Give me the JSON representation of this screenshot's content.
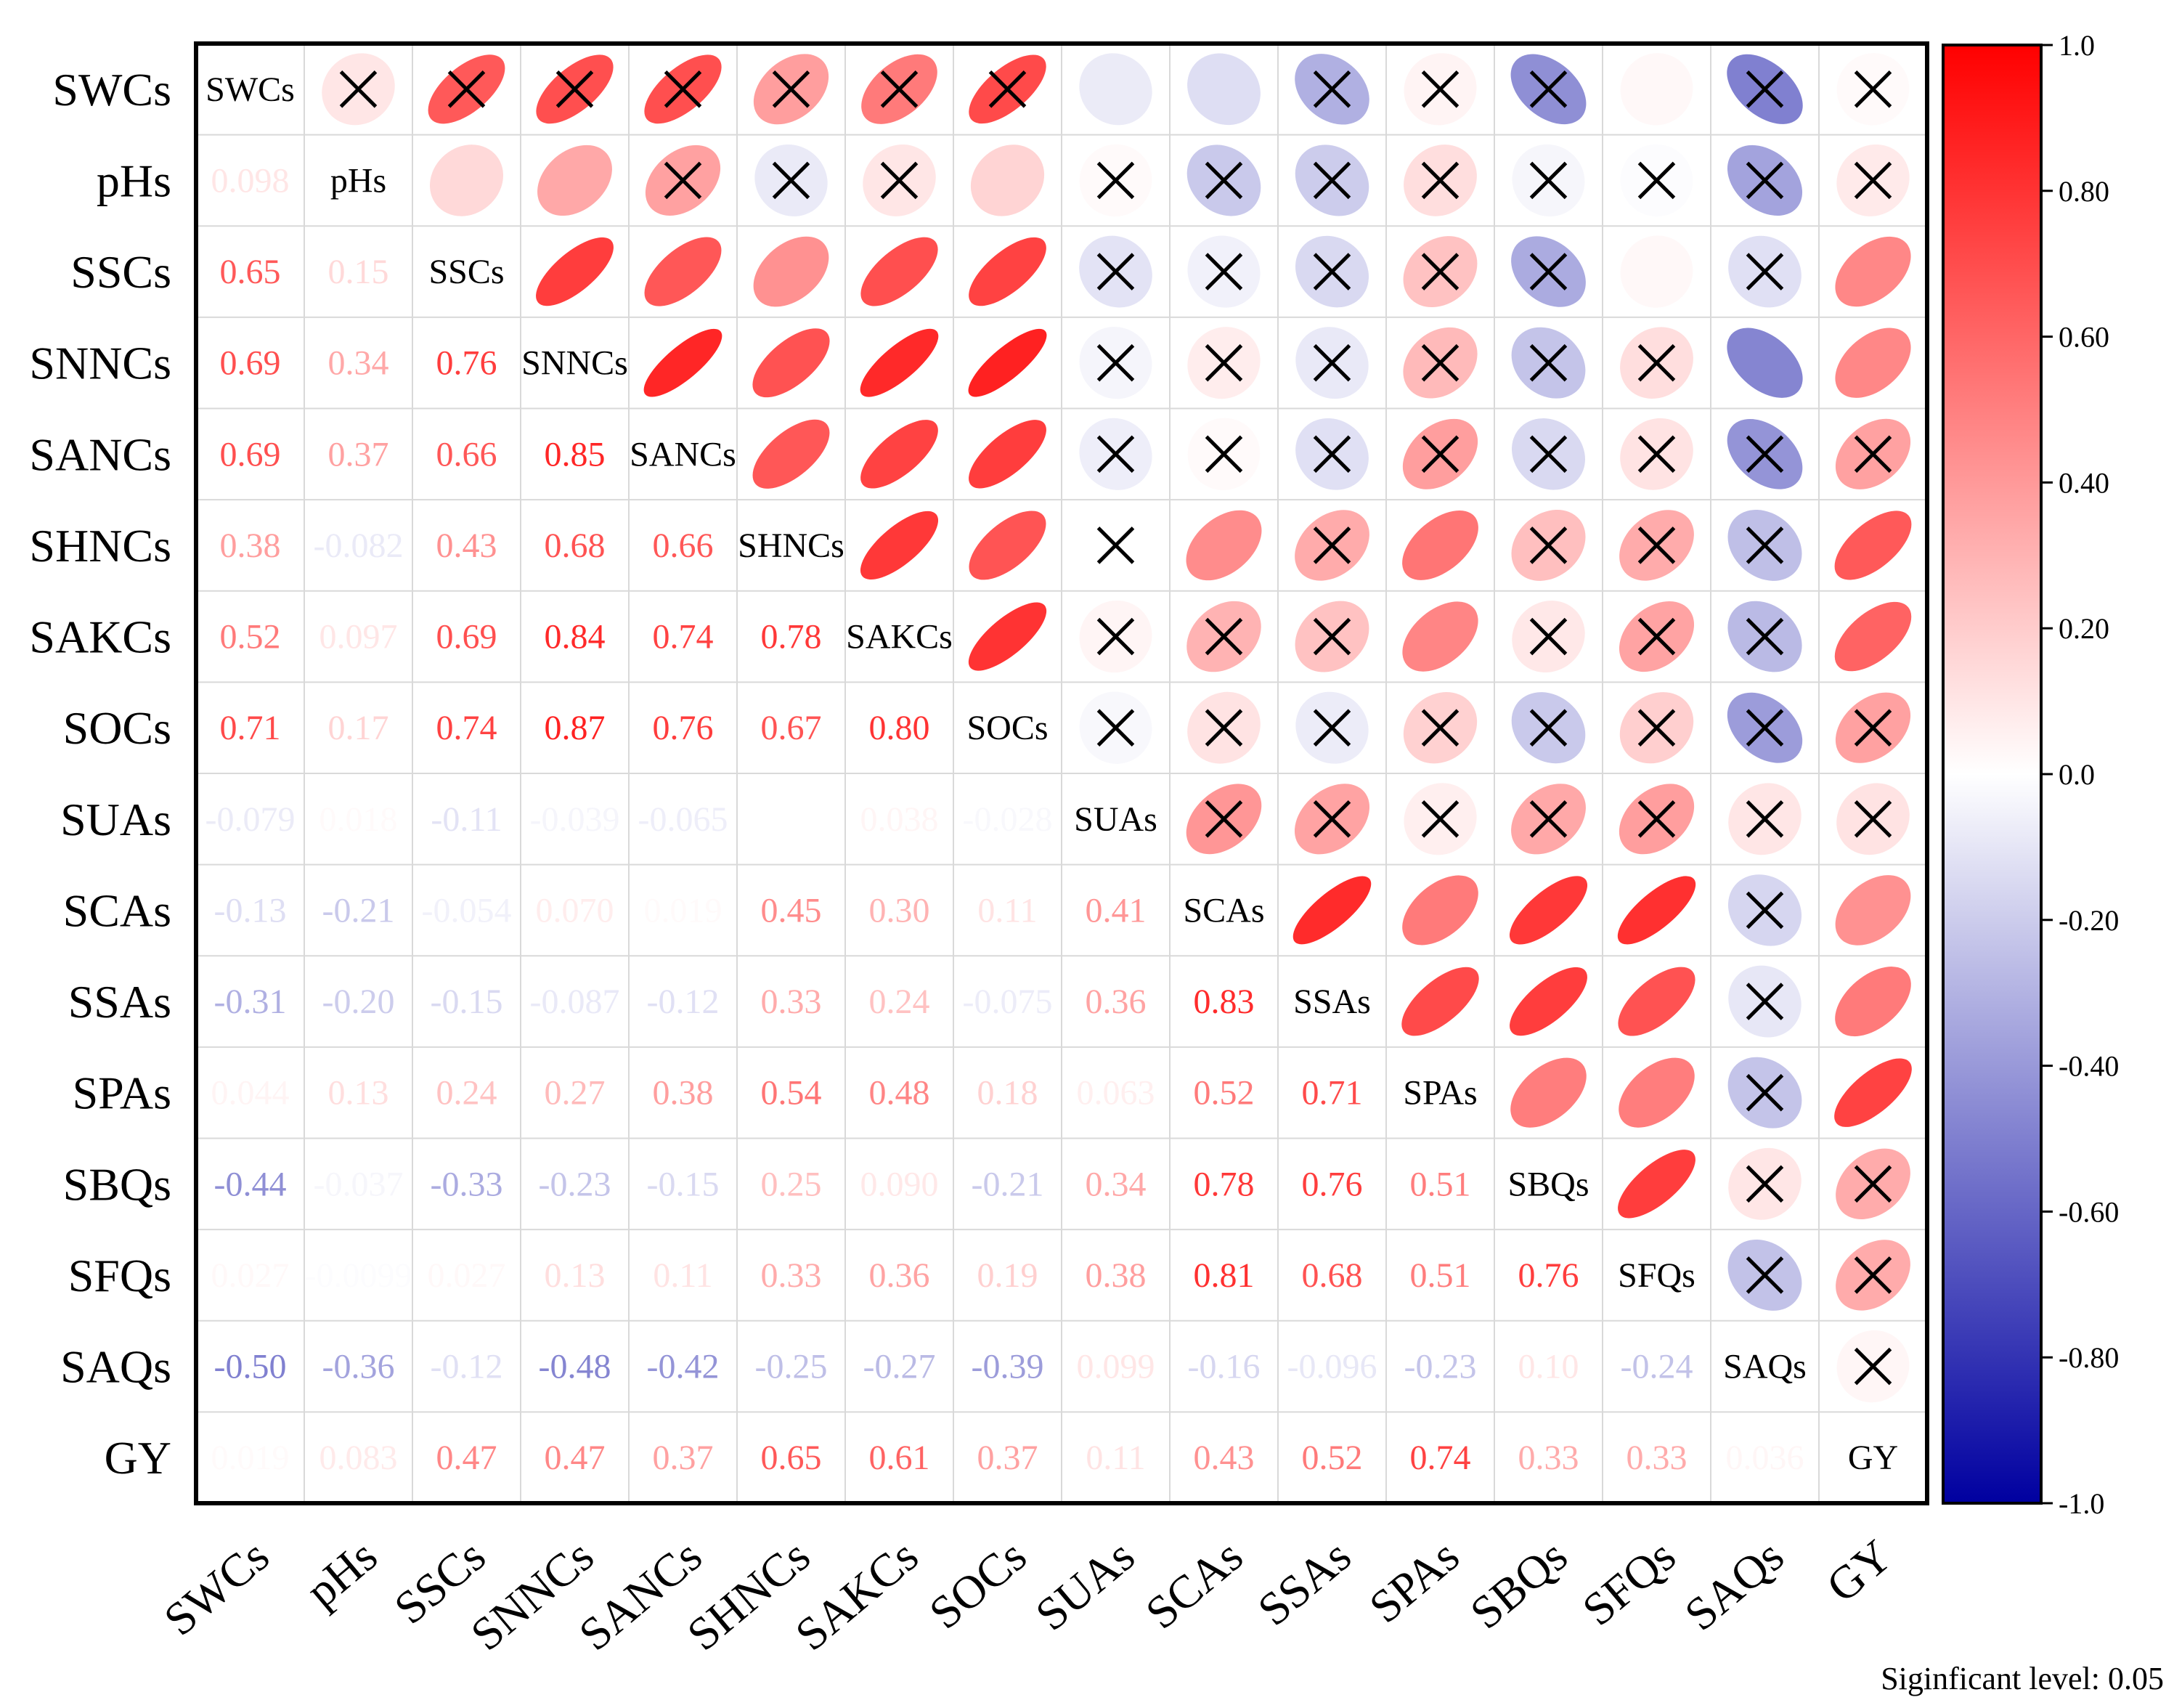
{
  "chart_data": {
    "type": "heatmap",
    "subtype": "correlation-matrix",
    "variables": [
      "SWCs",
      "pHs",
      "SSCs",
      "SNNCs",
      "SANCs",
      "SHNCs",
      "SAKCs",
      "SOCs",
      "SUAs",
      "SCAs",
      "SSAs",
      "SPAs",
      "SBQs",
      "SFQs",
      "SAQs",
      "GY"
    ],
    "lower_triangle_labels": [
      [],
      [
        "0.098"
      ],
      [
        "0.65",
        "0.15"
      ],
      [
        "0.69",
        "0.34",
        "0.76"
      ],
      [
        "0.69",
        "0.37",
        "0.66",
        "0.85"
      ],
      [
        "0.38",
        "-0.082",
        "0.43",
        "0.68",
        "0.66"
      ],
      [
        "0.52",
        "0.097",
        "0.69",
        "0.84",
        "0.74",
        "0.78"
      ],
      [
        "0.71",
        "0.17",
        "0.74",
        "0.87",
        "0.76",
        "0.67",
        "0.80"
      ],
      [
        "-0.079",
        "0.018",
        "-0.11",
        "-0.039",
        "-0.065",
        "",
        "0.038",
        "-0.028"
      ],
      [
        "-0.13",
        "-0.21",
        "-0.054",
        "0.070",
        "0.019",
        "0.45",
        "0.30",
        "0.11",
        "0.41"
      ],
      [
        "-0.31",
        "-0.20",
        "-0.15",
        "-0.087",
        "-0.12",
        "0.33",
        "0.24",
        "-0.075",
        "0.36",
        "0.83"
      ],
      [
        "0.044",
        "0.13",
        "0.24",
        "0.27",
        "0.38",
        "0.54",
        "0.48",
        "0.18",
        "0.063",
        "0.52",
        "0.71"
      ],
      [
        "-0.44",
        "-0.037",
        "-0.33",
        "-0.23",
        "-0.15",
        "0.25",
        "0.090",
        "-0.21",
        "0.34",
        "0.78",
        "0.76",
        "0.51"
      ],
      [
        "0.027",
        "-0.0099",
        "0.027",
        "0.13",
        "0.11",
        "0.33",
        "0.36",
        "0.19",
        "0.38",
        "0.81",
        "0.68",
        "0.51",
        "0.76"
      ],
      [
        "-0.50",
        "-0.36",
        "-0.12",
        "-0.48",
        "-0.42",
        "-0.25",
        "-0.27",
        "-0.39",
        "0.099",
        "-0.16",
        "-0.096",
        "-0.23",
        "0.10",
        "-0.24"
      ],
      [
        "0.019",
        "0.083",
        "0.47",
        "0.47",
        "0.37",
        "0.65",
        "0.61",
        "0.37",
        "0.11",
        "0.43",
        "0.52",
        "0.74",
        "0.33",
        "0.33",
        "0.036"
      ]
    ],
    "upper_triangle_values": [
      [],
      [
        0.098
      ],
      [
        0.65,
        0.15
      ],
      [
        0.69,
        0.34,
        0.76
      ],
      [
        0.69,
        0.37,
        0.66,
        0.85
      ],
      [
        0.38,
        -0.082,
        0.43,
        0.68,
        0.66
      ],
      [
        0.52,
        0.097,
        0.69,
        0.84,
        0.74,
        0.78
      ],
      [
        0.71,
        0.17,
        0.74,
        0.87,
        0.76,
        0.67,
        0.8
      ],
      [
        -0.079,
        0.018,
        -0.11,
        -0.039,
        -0.065,
        0.0,
        0.038,
        -0.028
      ],
      [
        -0.13,
        -0.21,
        -0.054,
        0.07,
        0.019,
        0.45,
        0.3,
        0.11,
        0.41
      ],
      [
        -0.31,
        -0.2,
        -0.15,
        -0.087,
        -0.12,
        0.33,
        0.24,
        -0.075,
        0.36,
        0.83
      ],
      [
        0.044,
        0.13,
        0.24,
        0.27,
        0.38,
        0.54,
        0.48,
        0.18,
        0.063,
        0.52,
        0.71
      ],
      [
        -0.44,
        -0.037,
        -0.33,
        -0.23,
        -0.15,
        0.25,
        0.09,
        -0.21,
        0.34,
        0.78,
        0.76,
        0.51
      ],
      [
        0.027,
        -0.0099,
        0.027,
        0.13,
        0.11,
        0.33,
        0.36,
        0.19,
        0.38,
        0.81,
        0.68,
        0.51,
        0.76
      ],
      [
        -0.5,
        -0.36,
        -0.12,
        -0.48,
        -0.42,
        -0.25,
        -0.27,
        -0.39,
        0.099,
        -0.16,
        -0.096,
        -0.23,
        0.1,
        -0.24
      ],
      [
        0.019,
        0.083,
        0.47,
        0.47,
        0.37,
        0.65,
        0.61,
        0.37,
        0.11,
        0.43,
        0.52,
        0.74,
        0.33,
        0.33,
        0.036
      ]
    ],
    "not_significant_pairs": [
      [
        0,
        1
      ],
      [
        0,
        2
      ],
      [
        0,
        3
      ],
      [
        0,
        4
      ],
      [
        0,
        5
      ],
      [
        0,
        6
      ],
      [
        0,
        7
      ],
      [
        0,
        10
      ],
      [
        0,
        11
      ],
      [
        0,
        12
      ],
      [
        0,
        14
      ],
      [
        0,
        15
      ],
      [
        1,
        4
      ],
      [
        1,
        5
      ],
      [
        1,
        6
      ],
      [
        1,
        8
      ],
      [
        1,
        9
      ],
      [
        1,
        10
      ],
      [
        1,
        11
      ],
      [
        1,
        12
      ],
      [
        1,
        13
      ],
      [
        1,
        14
      ],
      [
        1,
        15
      ],
      [
        2,
        8
      ],
      [
        2,
        9
      ],
      [
        2,
        10
      ],
      [
        2,
        11
      ],
      [
        2,
        12
      ],
      [
        2,
        14
      ],
      [
        3,
        8
      ],
      [
        3,
        9
      ],
      [
        3,
        10
      ],
      [
        3,
        11
      ],
      [
        3,
        12
      ],
      [
        3,
        13
      ],
      [
        4,
        8
      ],
      [
        4,
        9
      ],
      [
        4,
        10
      ],
      [
        4,
        11
      ],
      [
        4,
        12
      ],
      [
        4,
        13
      ],
      [
        4,
        14
      ],
      [
        4,
        15
      ],
      [
        5,
        8
      ],
      [
        5,
        10
      ],
      [
        5,
        12
      ],
      [
        5,
        13
      ],
      [
        5,
        14
      ],
      [
        6,
        8
      ],
      [
        6,
        9
      ],
      [
        6,
        10
      ],
      [
        6,
        12
      ],
      [
        6,
        13
      ],
      [
        6,
        14
      ],
      [
        7,
        8
      ],
      [
        7,
        9
      ],
      [
        7,
        10
      ],
      [
        7,
        11
      ],
      [
        7,
        12
      ],
      [
        7,
        13
      ],
      [
        7,
        14
      ],
      [
        7,
        15
      ],
      [
        8,
        9
      ],
      [
        8,
        10
      ],
      [
        8,
        11
      ],
      [
        8,
        12
      ],
      [
        8,
        13
      ],
      [
        8,
        14
      ],
      [
        8,
        15
      ],
      [
        9,
        14
      ],
      [
        10,
        14
      ],
      [
        11,
        14
      ],
      [
        12,
        14
      ],
      [
        12,
        15
      ],
      [
        13,
        14
      ],
      [
        13,
        15
      ],
      [
        14,
        15
      ]
    ],
    "colorbar": {
      "range": [
        -1.0,
        1.0
      ],
      "ticks": [
        1.0,
        0.8,
        0.6,
        0.4,
        0.2,
        0.0,
        -0.2,
        -0.4,
        -0.6,
        -0.8,
        -1.0
      ],
      "tick_labels": [
        "1.0",
        "0.80",
        "0.60",
        "0.40",
        "0.20",
        "0.0",
        "-0.20",
        "-0.40",
        "-0.60",
        "-0.80",
        "-1.0"
      ],
      "colors": {
        "negative": "#0000a0",
        "zero": "#ffffff",
        "positive": "#ff0000"
      }
    },
    "note": "Siginficant level: 0.05"
  }
}
